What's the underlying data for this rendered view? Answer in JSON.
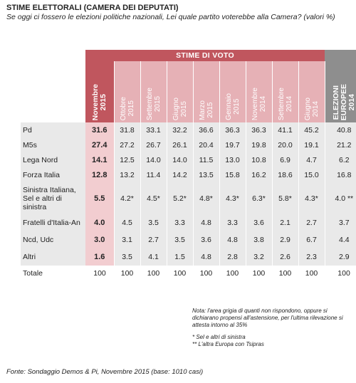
{
  "title": "STIME ELETTORALI (CAMERA DEI DEPUTATI)",
  "question": "Se oggi ci fossero le elezioni politiche nazionali,  Lei quale partito voterebbe alla Camera?  (valori %)",
  "header_band": "STIME DI VOTO",
  "colors": {
    "first_column": "#c0565e",
    "history_columns": "#e6b1b6",
    "first_cells": "#f2cdd0",
    "grey_cells": "#e9e9e9",
    "euro_header": "#8e8e8e"
  },
  "chart_data": {
    "type": "table",
    "columns": [
      "Novembre\n2015",
      "Ottobre\n2015",
      "Settembre\n2015",
      "Giugno\n2015",
      "Marzo\n2015",
      "Gennaio\n2015",
      "Novembre\n2014",
      "Settembre\n2014",
      "Giugno\n2014",
      "ELEZIONI\nEUROPEE\n2014"
    ],
    "rows": [
      {
        "label": "Pd",
        "values": [
          "31.6",
          "31.8",
          "33.1",
          "32.2",
          "36.6",
          "36.3",
          "36.3",
          "41.1",
          "45.2",
          "40.8"
        ]
      },
      {
        "label": "M5s",
        "values": [
          "27.4",
          "27.2",
          "26.7",
          "26.1",
          "20.4",
          "19.7",
          "19.8",
          "20.0",
          "19.1",
          "21.2"
        ]
      },
      {
        "label": "Lega Nord",
        "values": [
          "14.1",
          "12.5",
          "14.0",
          "14.0",
          "11.5",
          "13.0",
          "10.8",
          "6.9",
          "4.7",
          "6.2"
        ]
      },
      {
        "label": "Forza Italia",
        "values": [
          "12.8",
          "13.2",
          "11.4",
          "14.2",
          "13.5",
          "15.8",
          "16.2",
          "18.6",
          "15.0",
          "16.8"
        ]
      },
      {
        "label": "Sinistra Italiana, Sel e altri di sinistra",
        "values": [
          "5.5",
          "4.2*",
          "4.5*",
          "5.2*",
          "4.8*",
          "4.3*",
          "6.3*",
          "5.8*",
          "4.3*",
          "4.0 **"
        ]
      },
      {
        "label": "Fratelli d'Italia-An",
        "values": [
          "4.0",
          "4.5",
          "3.5",
          "3.3",
          "4.8",
          "3.3",
          "3.6",
          "2.1",
          "2.7",
          "3.7"
        ]
      },
      {
        "label": "Ncd, Udc",
        "values": [
          "3.0",
          "3.1",
          "2.7",
          "3.5",
          "3.6",
          "4.8",
          "3.8",
          "2.9",
          "6.7",
          "4.4"
        ]
      },
      {
        "label": "Altri",
        "values": [
          "1.6",
          "3.5",
          "4.1",
          "1.5",
          "4.8",
          "2.8",
          "3.2",
          "2.6",
          "2.3",
          "2.9"
        ]
      }
    ],
    "total": {
      "label": "Totale",
      "values": [
        "100",
        "100",
        "100",
        "100",
        "100",
        "100",
        "100",
        "100",
        "100",
        "100"
      ]
    }
  },
  "notes": {
    "note": "Nota: l'area grigia di quanti non rispondono, oppure si dichiarano propensi all'astensione, per l'ultima rilevazione si attesta intorno al 35%",
    "footnote1": "* Sel e altri di sinistra",
    "footnote2": "** L'altra Europa con Tsipras"
  },
  "source": "Fonte: Sondaggio Demos & Pi, Novembre 2015 (base: 1010 casi)"
}
